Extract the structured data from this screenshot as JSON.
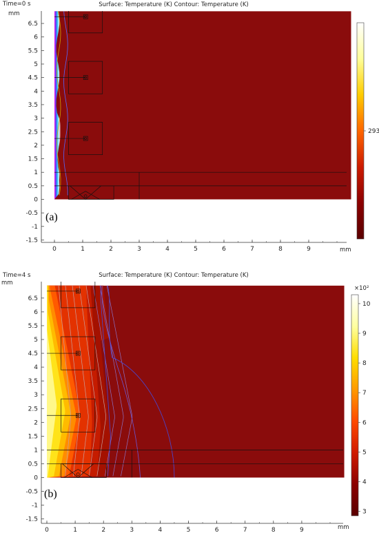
{
  "chart_data": [
    {
      "type": "heatmap",
      "panel_label": "(a)",
      "time_label": "Time=0 s",
      "title": "Surface: Temperature (K)  Contour: Temperature (K)",
      "unit_x": "mm",
      "unit_y": "mm",
      "x_ticks": [
        0,
        1,
        2,
        3,
        4,
        5,
        6,
        7,
        8,
        9
      ],
      "y_ticks": [
        6.5,
        6,
        5.5,
        5,
        4.5,
        4,
        3.5,
        3,
        2.5,
        2,
        1.5,
        1,
        0.5,
        0,
        -0.5,
        -1,
        -1.5
      ],
      "xlim": [
        -0.5,
        10.5
      ],
      "ylim": [
        -1.6,
        6.95
      ],
      "domain": {
        "x": [
          0,
          10.5
        ],
        "y": [
          0,
          6.95
        ]
      },
      "colorbar": {
        "min": 292.5,
        "max": 293.5,
        "ticks": [
          293
        ],
        "exponent": "",
        "colors": [
          "#5a0000",
          "#8b0000",
          "#cc1b00",
          "#ff6600",
          "#ffcc00",
          "#ffff99",
          "#ffffff"
        ]
      },
      "hot_edge_colors": [
        "#ff00ff",
        "#3a5bff",
        "#38e0ff",
        "#ffffff"
      ],
      "background_color": "#8a0c0c",
      "contours_x_at_mid": [
        0.15,
        0.35
      ],
      "heaters_y": [
        6.75,
        4.5,
        2.25
      ]
    },
    {
      "type": "heatmap",
      "panel_label": "(b)",
      "time_label": "Time=4 s",
      "title": "Surface: Temperature (K)  Contour: Temperature (K)",
      "unit_x": "mm",
      "unit_y": "mm",
      "x_ticks": [
        0,
        1,
        2,
        3,
        4,
        5,
        6,
        7,
        8,
        9
      ],
      "y_ticks": [
        6.5,
        6,
        5.5,
        5,
        4.5,
        4,
        3.5,
        3,
        2.5,
        2,
        1.5,
        1,
        0.5,
        0,
        -0.5,
        -1,
        -1.5
      ],
      "xlim": [
        -0.5,
        10.5
      ],
      "ylim": [
        -1.6,
        6.95
      ],
      "domain": {
        "x": [
          0,
          10.5
        ],
        "y": [
          0,
          6.95
        ]
      },
      "colorbar": {
        "min": 2.85,
        "max": 10.3,
        "ticks": [
          10,
          9,
          8,
          7,
          6,
          5,
          4,
          3
        ],
        "exponent": "×10²",
        "colors": [
          "#5a0000",
          "#8b0000",
          "#d01a00",
          "#ff4a00",
          "#ff9a00",
          "#ffdd00",
          "#ffffa0",
          "#ffffff"
        ]
      },
      "background_color": "#8a0c0c",
      "max_temperature_K": 1030,
      "min_temperature_K": 293,
      "heaters_y": [
        6.75,
        4.5,
        2.25
      ]
    }
  ]
}
